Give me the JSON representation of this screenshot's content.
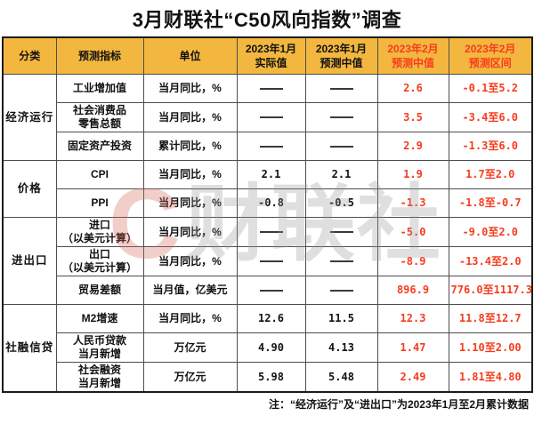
{
  "title": "3月财联社“C50风向指数”调查",
  "note": "注：“经济运行”及“进出口”为2023年1月至2月累计数据",
  "watermark": {
    "logo_glyph": "C",
    "text": "财联社"
  },
  "colors": {
    "header_bg": "#F3B73F",
    "highlight_red": "#F63C1E",
    "grid_border": "#4D4D4D",
    "outer_border": "#1B1B1B",
    "title_text": "#111111"
  },
  "chart_data": {
    "type": "table",
    "title": "3月财联社“C50风向指数”调查",
    "columns": [
      "分类",
      "预测指标",
      "单位",
      "2023年1月实际值",
      "2023年1月预测中值",
      "2023年2月预测中值",
      "2023年2月预测区间"
    ],
    "display_headers": [
      "分类",
      "预测指标",
      "单位",
      "2023年1月\n实际值",
      "2023年1月\n预测中值",
      "2023年2月\n预测中值",
      "2023年2月\n预测区间"
    ],
    "red_columns": [
      5,
      6
    ],
    "empty_marker": "——",
    "rows": [
      [
        "经济运行",
        "工业增加值",
        "当月同比，%",
        "——",
        "——",
        "2.6",
        "-0.1至5.2"
      ],
      [
        "经济运行",
        "社会消费品\n零售总额",
        "当月同比，%",
        "——",
        "——",
        "3.5",
        "-3.4至6.0"
      ],
      [
        "经济运行",
        "固定资产投资",
        "累计同比，%",
        "——",
        "——",
        "2.9",
        "-1.3至6.0"
      ],
      [
        "价格",
        "CPI",
        "当月同比，%",
        "2.1",
        "2.1",
        "1.9",
        "1.7至2.0"
      ],
      [
        "价格",
        "PPI",
        "当月同比，%",
        "-0.8",
        "-0.5",
        "-1.3",
        "-1.8至-0.7"
      ],
      [
        "进出口",
        "进口\n（以美元计算）",
        "当月同比，%",
        "——",
        "——",
        "-5.0",
        "-9.0至2.0"
      ],
      [
        "进出口",
        "出口\n（以美元计算）",
        "当月同比，%",
        "——",
        "——",
        "-8.9",
        "-13.4至2.0"
      ],
      [
        "进出口",
        "贸易差额",
        "当月值，亿美元",
        "——",
        "——",
        "896.9",
        "776.0至1117.3"
      ],
      [
        "社融信贷",
        "M2增速",
        "当月同比，%",
        "12.6",
        "11.5",
        "12.3",
        "11.8至12.7"
      ],
      [
        "社融信贷",
        "人民币贷款\n当月新增",
        "万亿元",
        "4.90",
        "4.13",
        "1.47",
        "1.10至2.00"
      ],
      [
        "社融信贷",
        "社会融资\n当月新增",
        "万亿元",
        "5.98",
        "5.48",
        "2.49",
        "1.81至4.80"
      ]
    ],
    "footnote": "注：“经济运行”及“进出口”为2023年1月至2月累计数据",
    "legend_position": "none",
    "grid": true
  }
}
